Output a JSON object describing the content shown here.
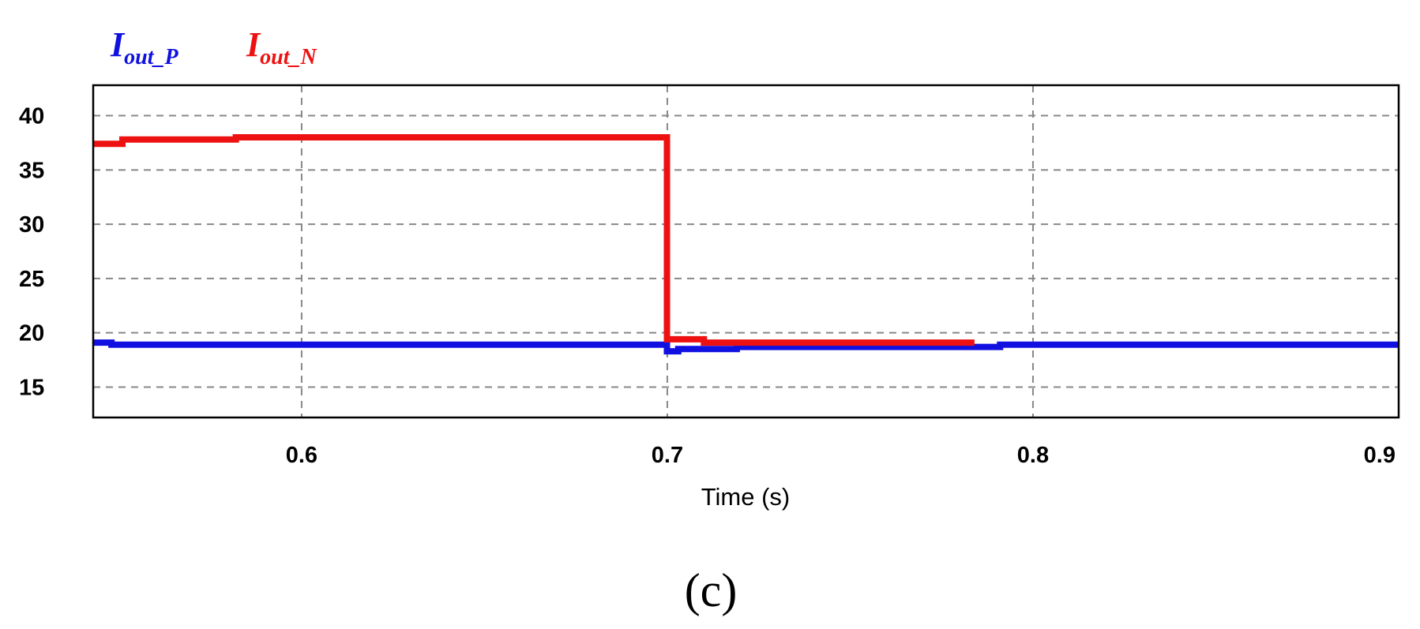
{
  "chart_data": {
    "type": "line",
    "xlabel": "Time (s)",
    "ylabel": "",
    "xlim": [
      0.543,
      0.9
    ],
    "ylim": [
      12.2,
      42.8
    ],
    "xticks": [
      0.6,
      0.7,
      0.8,
      0.9
    ],
    "yticks": [
      15,
      20,
      25,
      30,
      35,
      40
    ],
    "grid": true,
    "legend_placement": "top-left",
    "legend": [
      {
        "main": "I",
        "sub": "out_P",
        "color": "#1010e0"
      },
      {
        "main": "I",
        "sub": "out_N",
        "color": "#ee1111"
      }
    ],
    "series": [
      {
        "name": "Iout_P",
        "color": "#1010e0",
        "points": [
          [
            0.543,
            19.1
          ],
          [
            0.548,
            19.1
          ],
          [
            0.548,
            18.9
          ],
          [
            0.6999,
            18.9
          ],
          [
            0.6999,
            18.3
          ],
          [
            0.703,
            18.3
          ],
          [
            0.703,
            18.5
          ],
          [
            0.719,
            18.5
          ],
          [
            0.719,
            18.7
          ],
          [
            0.791,
            18.7
          ],
          [
            0.791,
            18.9
          ],
          [
            0.9,
            18.9
          ]
        ]
      },
      {
        "name": "Iout_N",
        "color": "#ee1111",
        "points": [
          [
            0.543,
            37.4
          ],
          [
            0.551,
            37.4
          ],
          [
            0.551,
            37.8
          ],
          [
            0.582,
            37.8
          ],
          [
            0.582,
            38.0
          ],
          [
            0.6999,
            38.0
          ],
          [
            0.6999,
            19.4
          ],
          [
            0.71,
            19.4
          ],
          [
            0.71,
            19.1
          ],
          [
            0.784,
            19.1
          ]
        ]
      }
    ]
  },
  "caption": "(c)"
}
